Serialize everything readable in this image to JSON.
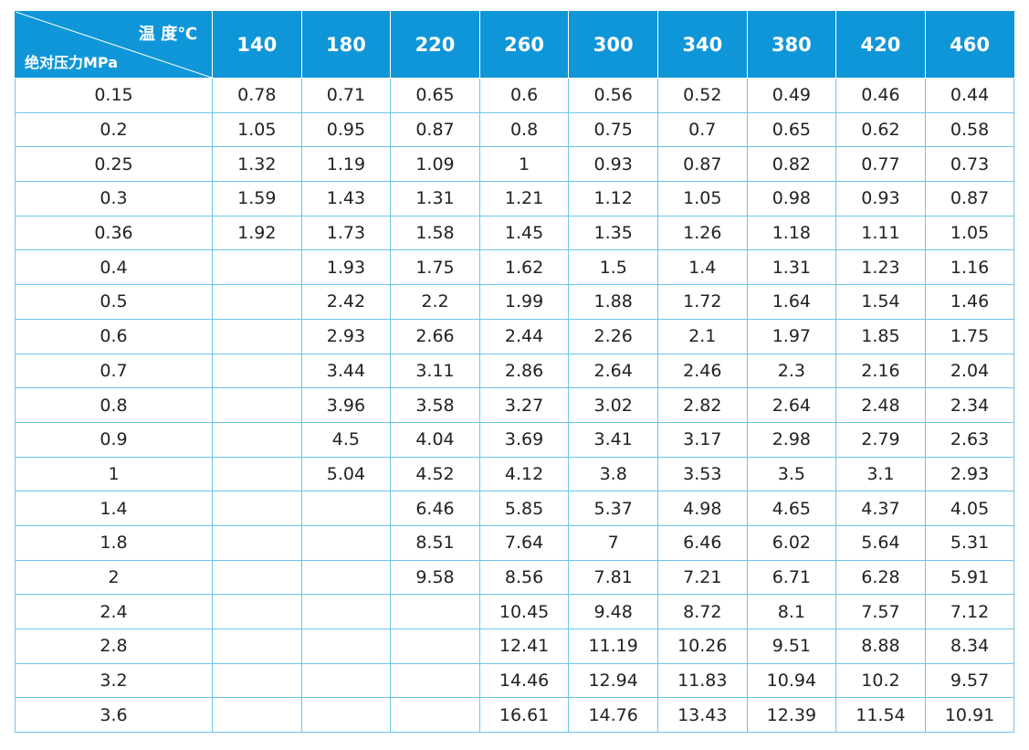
{
  "table": {
    "corner_top": "温 度℃",
    "corner_bottom": "绝对压力MPa",
    "temperatures": [
      "140",
      "180",
      "220",
      "260",
      "300",
      "340",
      "380",
      "420",
      "460"
    ],
    "rows": [
      {
        "p": "0.15",
        "v": [
          "0.78",
          "0.71",
          "0.65",
          "0.6",
          "0.56",
          "0.52",
          "0.49",
          "0.46",
          "0.44"
        ]
      },
      {
        "p": "0.2",
        "v": [
          "1.05",
          "0.95",
          "0.87",
          "0.8",
          "0.75",
          "0.7",
          "0.65",
          "0.62",
          "0.58"
        ]
      },
      {
        "p": "0.25",
        "v": [
          "1.32",
          "1.19",
          "1.09",
          "1",
          "0.93",
          "0.87",
          "0.82",
          "0.77",
          "0.73"
        ]
      },
      {
        "p": "0.3",
        "v": [
          "1.59",
          "1.43",
          "1.31",
          "1.21",
          "1.12",
          "1.05",
          "0.98",
          "0.93",
          "0.87"
        ]
      },
      {
        "p": "0.36",
        "v": [
          "1.92",
          "1.73",
          "1.58",
          "1.45",
          "1.35",
          "1.26",
          "1.18",
          "1.11",
          "1.05"
        ]
      },
      {
        "p": "0.4",
        "v": [
          "",
          "1.93",
          "1.75",
          "1.62",
          "1.5",
          "1.4",
          "1.31",
          "1.23",
          "1.16"
        ]
      },
      {
        "p": "0.5",
        "v": [
          "",
          "2.42",
          "2.2",
          "1.99",
          "1.88",
          "1.72",
          "1.64",
          "1.54",
          "1.46"
        ]
      },
      {
        "p": "0.6",
        "v": [
          "",
          "2.93",
          "2.66",
          "2.44",
          "2.26",
          "2.1",
          "1.97",
          "1.85",
          "1.75"
        ]
      },
      {
        "p": "0.7",
        "v": [
          "",
          "3.44",
          "3.11",
          "2.86",
          "2.64",
          "2.46",
          "2.3",
          "2.16",
          "2.04"
        ]
      },
      {
        "p": "0.8",
        "v": [
          "",
          "3.96",
          "3.58",
          "3.27",
          "3.02",
          "2.82",
          "2.64",
          "2.48",
          "2.34"
        ]
      },
      {
        "p": "0.9",
        "v": [
          "",
          "4.5",
          "4.04",
          "3.69",
          "3.41",
          "3.17",
          "2.98",
          "2.79",
          "2.63"
        ]
      },
      {
        "p": "1",
        "v": [
          "",
          "5.04",
          "4.52",
          "4.12",
          "3.8",
          "3.53",
          "3.5",
          "3.1",
          "2.93"
        ]
      },
      {
        "p": "1.4",
        "v": [
          "",
          "",
          "6.46",
          "5.85",
          "5.37",
          "4.98",
          "4.65",
          "4.37",
          "4.05"
        ]
      },
      {
        "p": "1.8",
        "v": [
          "",
          "",
          "8.51",
          "7.64",
          "7",
          "6.46",
          "6.02",
          "5.64",
          "5.31"
        ]
      },
      {
        "p": "2",
        "v": [
          "",
          "",
          "9.58",
          "8.56",
          "7.81",
          "7.21",
          "6.71",
          "6.28",
          "5.91"
        ]
      },
      {
        "p": "2.4",
        "v": [
          "",
          "",
          "",
          "10.45",
          "9.48",
          "8.72",
          "8.1",
          "7.57",
          "7.12"
        ]
      },
      {
        "p": "2.8",
        "v": [
          "",
          "",
          "",
          "12.41",
          "11.19",
          "10.26",
          "9.51",
          "8.88",
          "8.34"
        ]
      },
      {
        "p": "3.2",
        "v": [
          "",
          "",
          "",
          "14.46",
          "12.94",
          "11.83",
          "10.94",
          "10.2",
          "9.57"
        ]
      },
      {
        "p": "3.6",
        "v": [
          "",
          "",
          "",
          "16.61",
          "14.76",
          "13.43",
          "12.39",
          "11.54",
          "10.91"
        ]
      }
    ]
  },
  "colors": {
    "header_bg": "#0f96d8",
    "grid_line": "#6cc5ec"
  }
}
